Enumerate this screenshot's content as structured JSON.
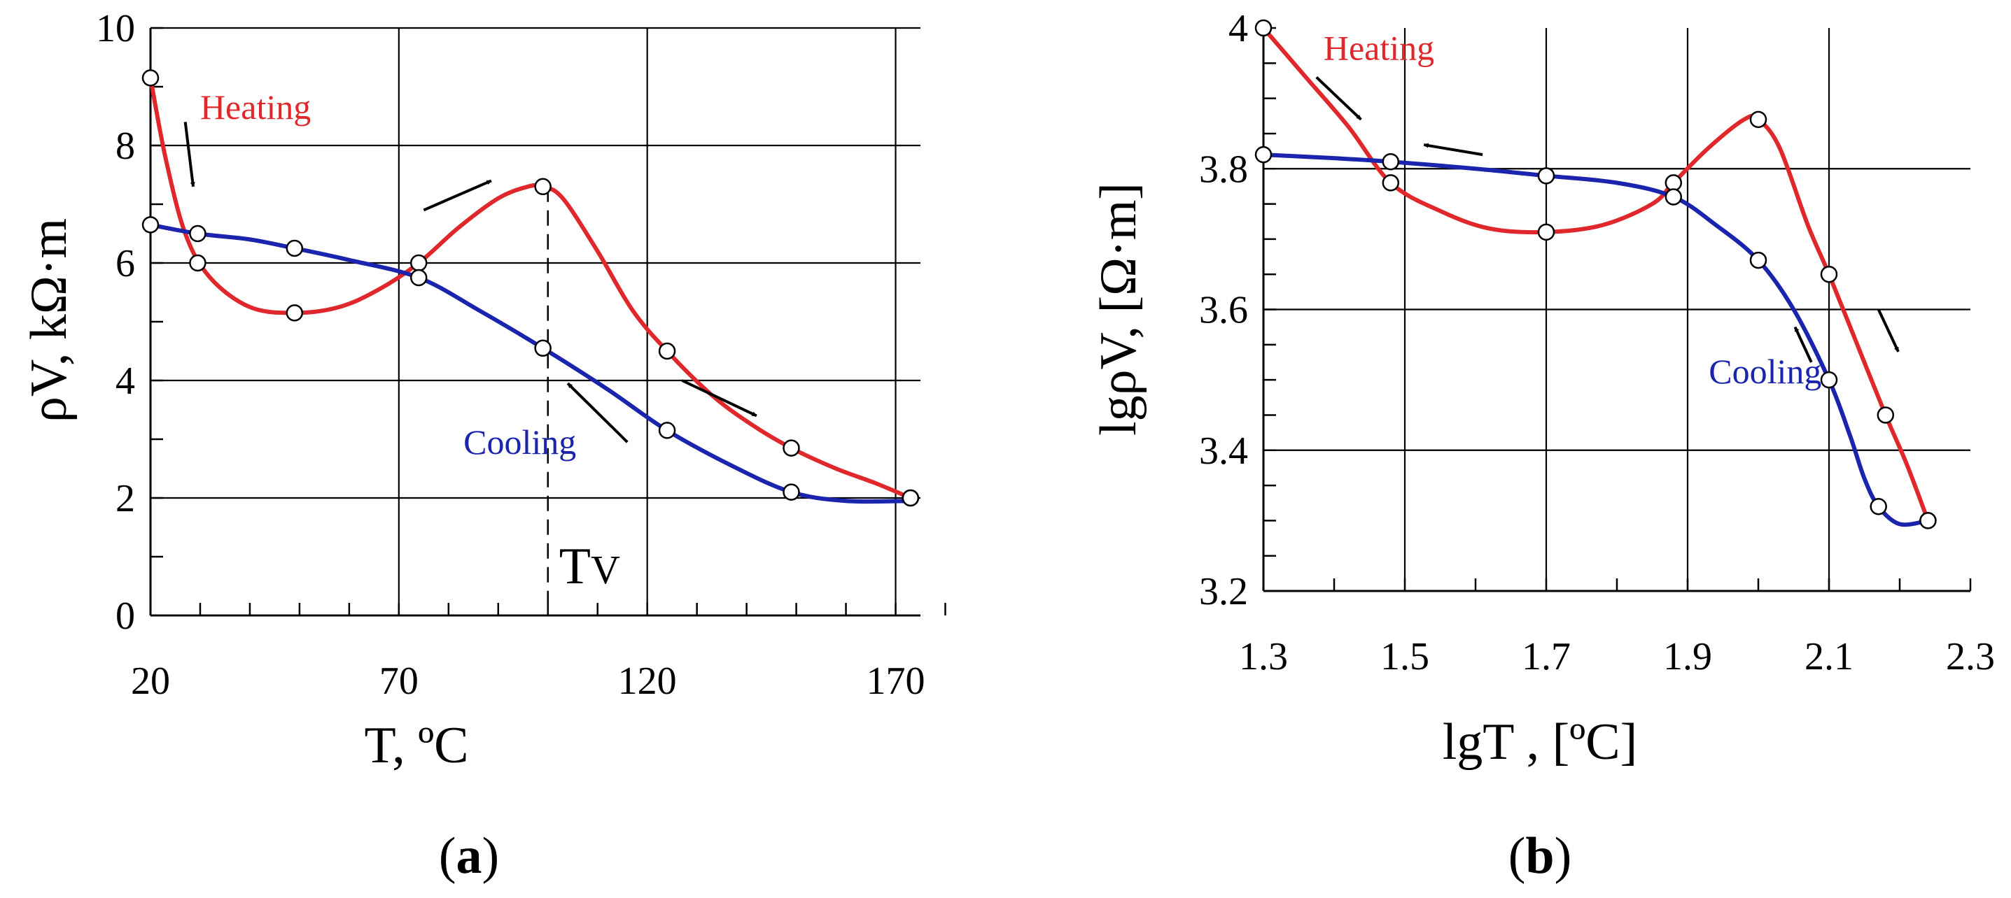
{
  "colors": {
    "heating": "#e0282c",
    "cooling": "#1b24ad",
    "axis": "#000000",
    "marker_fill": "#ffffff"
  },
  "chart_data": [
    {
      "type": "line",
      "panel": "(a)",
      "panel_letter": "a",
      "xlabel": "T, ºC",
      "ylabel": "ρV, kΩ·m",
      "xlim": [
        20,
        175
      ],
      "ylim": [
        0,
        10
      ],
      "x_ticks": [
        20,
        70,
        120,
        170
      ],
      "y_ticks": [
        0,
        2,
        4,
        6,
        8,
        10
      ],
      "x_minor_step": 10,
      "y_minor_step": 1,
      "x_grid": [
        20,
        70,
        120,
        170
      ],
      "y_grid": [
        2,
        4,
        6,
        8,
        10
      ],
      "vline": {
        "x": 100,
        "label": "TV"
      },
      "series": [
        {
          "name": "Heating",
          "color_key": "heating",
          "points": [
            [
              20,
              9.15
            ],
            [
              29.5,
              6.0
            ],
            [
              49,
              5.15
            ],
            [
              74,
              6.0
            ],
            [
              99,
              7.3
            ],
            [
              124,
              4.5
            ],
            [
              149,
              2.85
            ],
            [
              173,
              2.0
            ]
          ],
          "curve": [
            [
              20,
              9.15
            ],
            [
              23,
              7.8
            ],
            [
              27,
              6.5
            ],
            [
              32,
              5.75
            ],
            [
              40,
              5.25
            ],
            [
              49,
              5.15
            ],
            [
              58,
              5.25
            ],
            [
              66,
              5.55
            ],
            [
              74,
              6.0
            ],
            [
              82,
              6.6
            ],
            [
              90,
              7.1
            ],
            [
              96,
              7.3
            ],
            [
              99,
              7.3
            ],
            [
              103,
              7.1
            ],
            [
              110,
              6.2
            ],
            [
              117,
              5.2
            ],
            [
              124,
              4.5
            ],
            [
              133,
              3.75
            ],
            [
              141,
              3.25
            ],
            [
              149,
              2.85
            ],
            [
              158,
              2.5
            ],
            [
              166,
              2.25
            ],
            [
              173,
              2.0
            ]
          ]
        },
        {
          "name": "Cooling",
          "color_key": "cooling",
          "points": [
            [
              20,
              6.65
            ],
            [
              29.5,
              6.5
            ],
            [
              49,
              6.25
            ],
            [
              74,
              5.75
            ],
            [
              99,
              4.55
            ],
            [
              124,
              3.15
            ],
            [
              149,
              2.1
            ],
            [
              173,
              2.0
            ]
          ],
          "curve": [
            [
              20,
              6.65
            ],
            [
              29.5,
              6.5
            ],
            [
              40,
              6.4
            ],
            [
              49,
              6.25
            ],
            [
              60,
              6.05
            ],
            [
              74,
              5.75
            ],
            [
              86,
              5.2
            ],
            [
              99,
              4.55
            ],
            [
              112,
              3.85
            ],
            [
              124,
              3.15
            ],
            [
              137,
              2.55
            ],
            [
              149,
              2.1
            ],
            [
              160,
              1.95
            ],
            [
              173,
              1.95
            ]
          ]
        }
      ],
      "annotations": [
        {
          "text": "Heating",
          "color_key": "heating",
          "x": 30,
          "y": 8.45
        },
        {
          "text": "Cooling",
          "color_key": "cooling",
          "x": 83,
          "y": 2.75
        }
      ],
      "arrows": [
        {
          "from": [
            27,
            8.4
          ],
          "to": [
            28.6,
            7.3
          ]
        },
        {
          "from": [
            75,
            6.9
          ],
          "to": [
            88.6,
            7.4
          ]
        },
        {
          "from": [
            127,
            4.0
          ],
          "to": [
            142,
            3.4
          ]
        },
        {
          "from": [
            116,
            2.95
          ],
          "to": [
            104,
            3.95
          ]
        }
      ]
    },
    {
      "type": "line",
      "panel": "(b)",
      "panel_letter": "b",
      "xlabel": "lgT , [ºC]",
      "ylabel": "lgρV, [Ω·m]",
      "xlim": [
        1.3,
        2.3
      ],
      "ylim": [
        3.2,
        4.0
      ],
      "x_ticks": [
        1.3,
        1.5,
        1.7,
        1.9,
        2.1,
        2.3
      ],
      "y_ticks": [
        3.2,
        3.4,
        3.6,
        3.8,
        4
      ],
      "x_minor_step": 0.1,
      "y_minor_step": 0.05,
      "x_grid": [
        1.5,
        1.7,
        1.9,
        2.1
      ],
      "y_grid": [
        3.4,
        3.6,
        3.8
      ],
      "series": [
        {
          "name": "Heating",
          "color_key": "heating",
          "points": [
            [
              1.3,
              4.0
            ],
            [
              1.48,
              3.78
            ],
            [
              1.7,
              3.71
            ],
            [
              1.88,
              3.78
            ],
            [
              2.0,
              3.87
            ],
            [
              2.1,
              3.65
            ],
            [
              2.18,
              3.45
            ],
            [
              2.24,
              3.3
            ]
          ],
          "curve": [
            [
              1.3,
              4.0
            ],
            [
              1.36,
              3.93
            ],
            [
              1.42,
              3.86
            ],
            [
              1.48,
              3.78
            ],
            [
              1.55,
              3.74
            ],
            [
              1.62,
              3.715
            ],
            [
              1.7,
              3.71
            ],
            [
              1.78,
              3.72
            ],
            [
              1.85,
              3.75
            ],
            [
              1.88,
              3.78
            ],
            [
              1.93,
              3.83
            ],
            [
              1.98,
              3.87
            ],
            [
              2.0,
              3.87
            ],
            [
              2.03,
              3.83
            ],
            [
              2.07,
              3.72
            ],
            [
              2.1,
              3.65
            ],
            [
              2.14,
              3.55
            ],
            [
              2.18,
              3.45
            ],
            [
              2.21,
              3.38
            ],
            [
              2.24,
              3.3
            ]
          ]
        },
        {
          "name": "Cooling",
          "color_key": "cooling",
          "points": [
            [
              1.3,
              3.82
            ],
            [
              1.48,
              3.81
            ],
            [
              1.7,
              3.79
            ],
            [
              1.88,
              3.76
            ],
            [
              2.0,
              3.67
            ],
            [
              2.1,
              3.5
            ],
            [
              2.17,
              3.32
            ],
            [
              2.24,
              3.3
            ]
          ],
          "curve": [
            [
              1.3,
              3.82
            ],
            [
              1.4,
              3.815
            ],
            [
              1.48,
              3.81
            ],
            [
              1.6,
              3.8
            ],
            [
              1.7,
              3.79
            ],
            [
              1.8,
              3.78
            ],
            [
              1.88,
              3.76
            ],
            [
              1.94,
              3.72
            ],
            [
              2.0,
              3.67
            ],
            [
              2.05,
              3.6
            ],
            [
              2.1,
              3.5
            ],
            [
              2.13,
              3.42
            ],
            [
              2.15,
              3.36
            ],
            [
              2.17,
              3.32
            ],
            [
              2.2,
              3.295
            ],
            [
              2.24,
              3.3
            ]
          ]
        }
      ],
      "annotations": [
        {
          "text": "Heating",
          "color_key": "heating",
          "x": 1.385,
          "y": 3.955
        },
        {
          "text": "Cooling",
          "color_key": "cooling",
          "x": 1.93,
          "y": 3.495
        }
      ],
      "arrows": [
        {
          "from": [
            1.375,
            3.93
          ],
          "to": [
            1.438,
            3.87
          ]
        },
        {
          "from": [
            1.61,
            3.82
          ],
          "to": [
            1.527,
            3.834
          ]
        },
        {
          "from": [
            2.17,
            3.6
          ],
          "to": [
            2.198,
            3.54
          ]
        },
        {
          "from": [
            2.075,
            3.525
          ],
          "to": [
            2.052,
            3.575
          ]
        }
      ]
    }
  ]
}
